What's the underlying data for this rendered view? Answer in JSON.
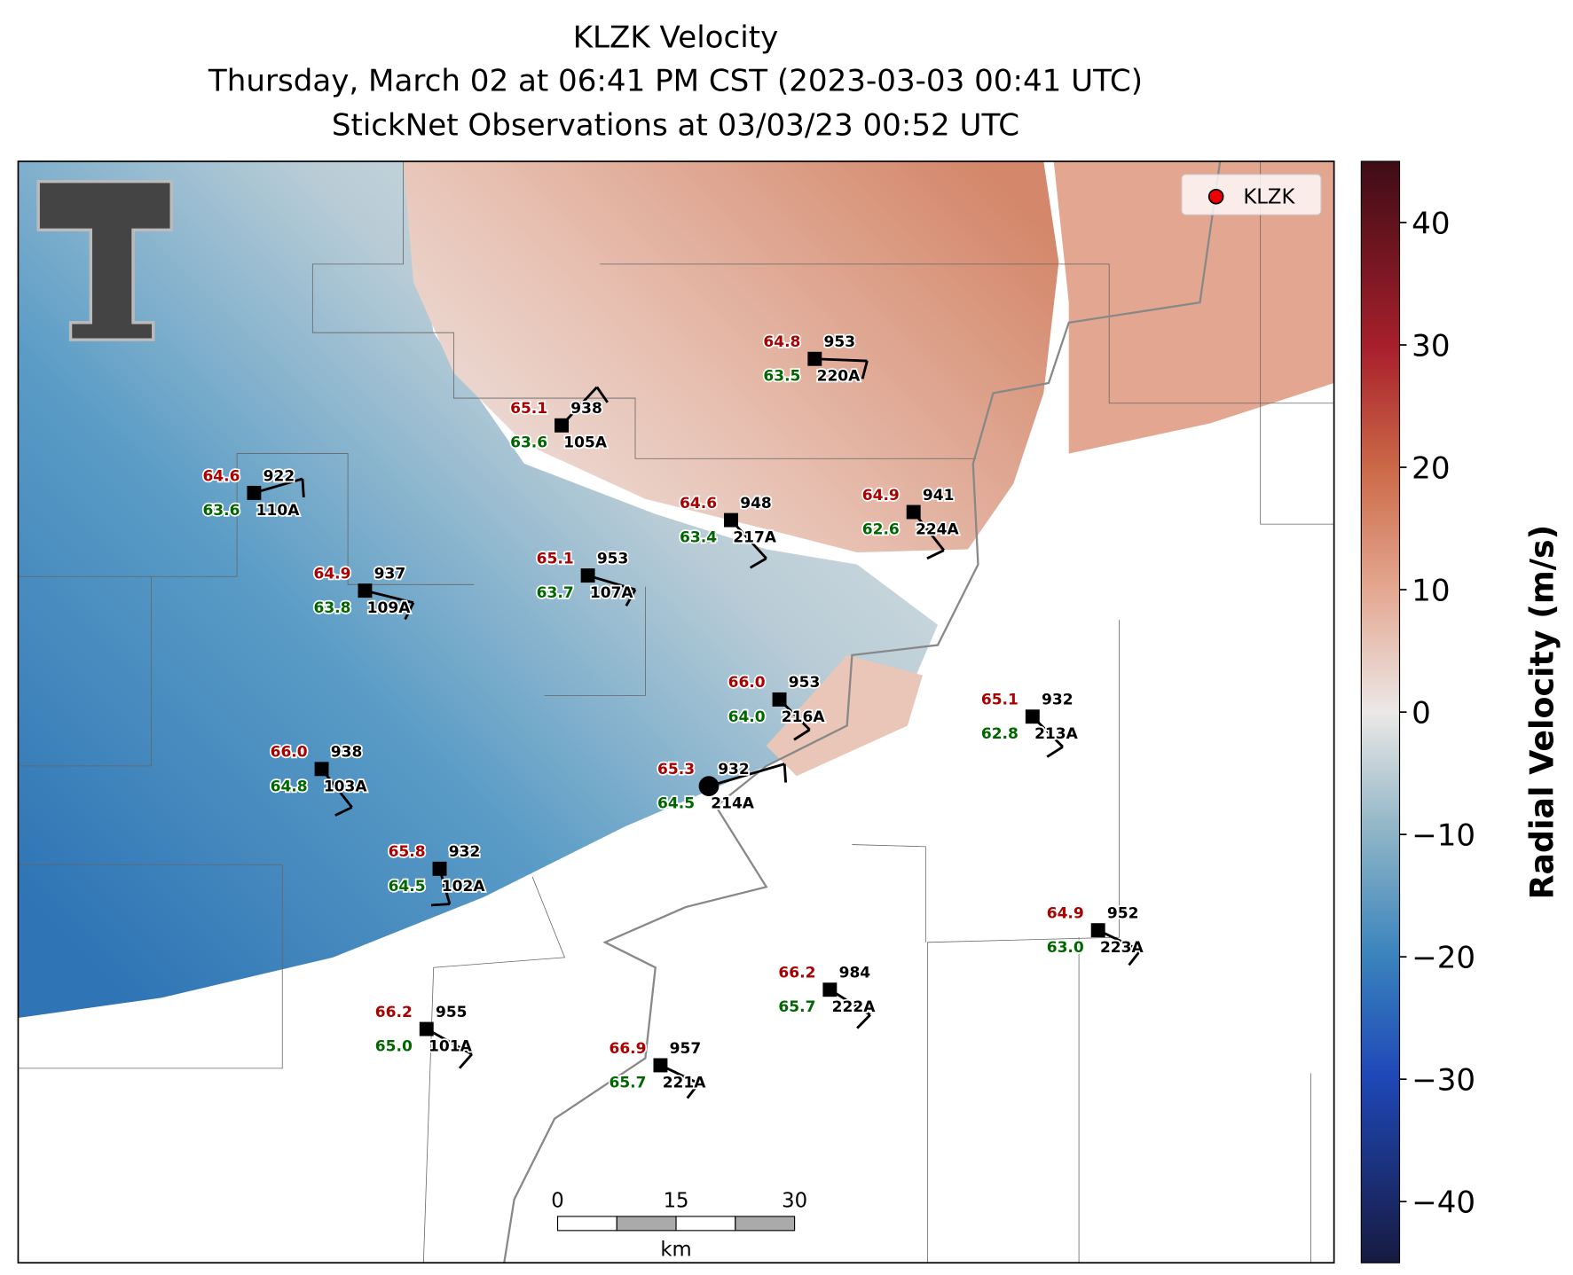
{
  "title": {
    "radar": "KLZK Velocity",
    "time": "Thursday, March 02 at 06:41 PM CST (2023-03-03 00:41 UTC)",
    "observations": "StickNet Observations at 03/03/23 00:52 UTC"
  },
  "legend": {
    "label": "KLZK"
  },
  "stations": [
    {
      "id": "220A",
      "temperature": "64.8",
      "dewpoint": "63.5",
      "pressure": 953
    },
    {
      "id": "105A",
      "temperature": "65.1",
      "dewpoint": "63.6",
      "pressure": 938
    },
    {
      "id": "110A",
      "temperature": "64.6",
      "dewpoint": "63.6",
      "pressure": 922
    },
    {
      "id": "217A",
      "temperature": "64.6",
      "dewpoint": "63.4",
      "pressure": 948
    },
    {
      "id": "224A",
      "temperature": "64.9",
      "dewpoint": "62.6",
      "pressure": 941
    },
    {
      "id": "107A",
      "temperature": "65.1",
      "dewpoint": "63.7",
      "pressure": 953
    },
    {
      "id": "109A",
      "temperature": "64.9",
      "dewpoint": "63.8",
      "pressure": 937
    },
    {
      "id": "216A",
      "temperature": "66.0",
      "dewpoint": "64.0",
      "pressure": 953
    },
    {
      "id": "213A",
      "temperature": "65.1",
      "dewpoint": "62.8",
      "pressure": 932
    },
    {
      "id": "214A",
      "temperature": "65.3",
      "dewpoint": "64.5",
      "pressure": 932
    },
    {
      "id": "103A",
      "temperature": "66.0",
      "dewpoint": "64.8",
      "pressure": 938
    },
    {
      "id": "102A",
      "temperature": "65.8",
      "dewpoint": "64.5",
      "pressure": 932
    },
    {
      "id": "223A",
      "temperature": "64.9",
      "dewpoint": "63.0",
      "pressure": 952
    },
    {
      "id": "222A",
      "temperature": "66.2",
      "dewpoint": "65.7",
      "pressure": 984
    },
    {
      "id": "101A",
      "temperature": "66.2",
      "dewpoint": "65.0",
      "pressure": 955
    },
    {
      "id": "221A",
      "temperature": "66.9",
      "dewpoint": "65.7",
      "pressure": 957
    }
  ],
  "colorbar": {
    "label": "Radial Velocity (m/s)",
    "lim": [
      -45,
      45
    ],
    "ticks": [
      {
        "value": -40,
        "label": "−40"
      },
      {
        "value": -30,
        "label": "−30"
      },
      {
        "value": -20,
        "label": "−20"
      },
      {
        "value": -10,
        "label": "−10"
      },
      0,
      10,
      20,
      30,
      40
    ]
  },
  "scale_bar": {
    "ticks": [
      0,
      15,
      30
    ],
    "unit": "km"
  }
}
